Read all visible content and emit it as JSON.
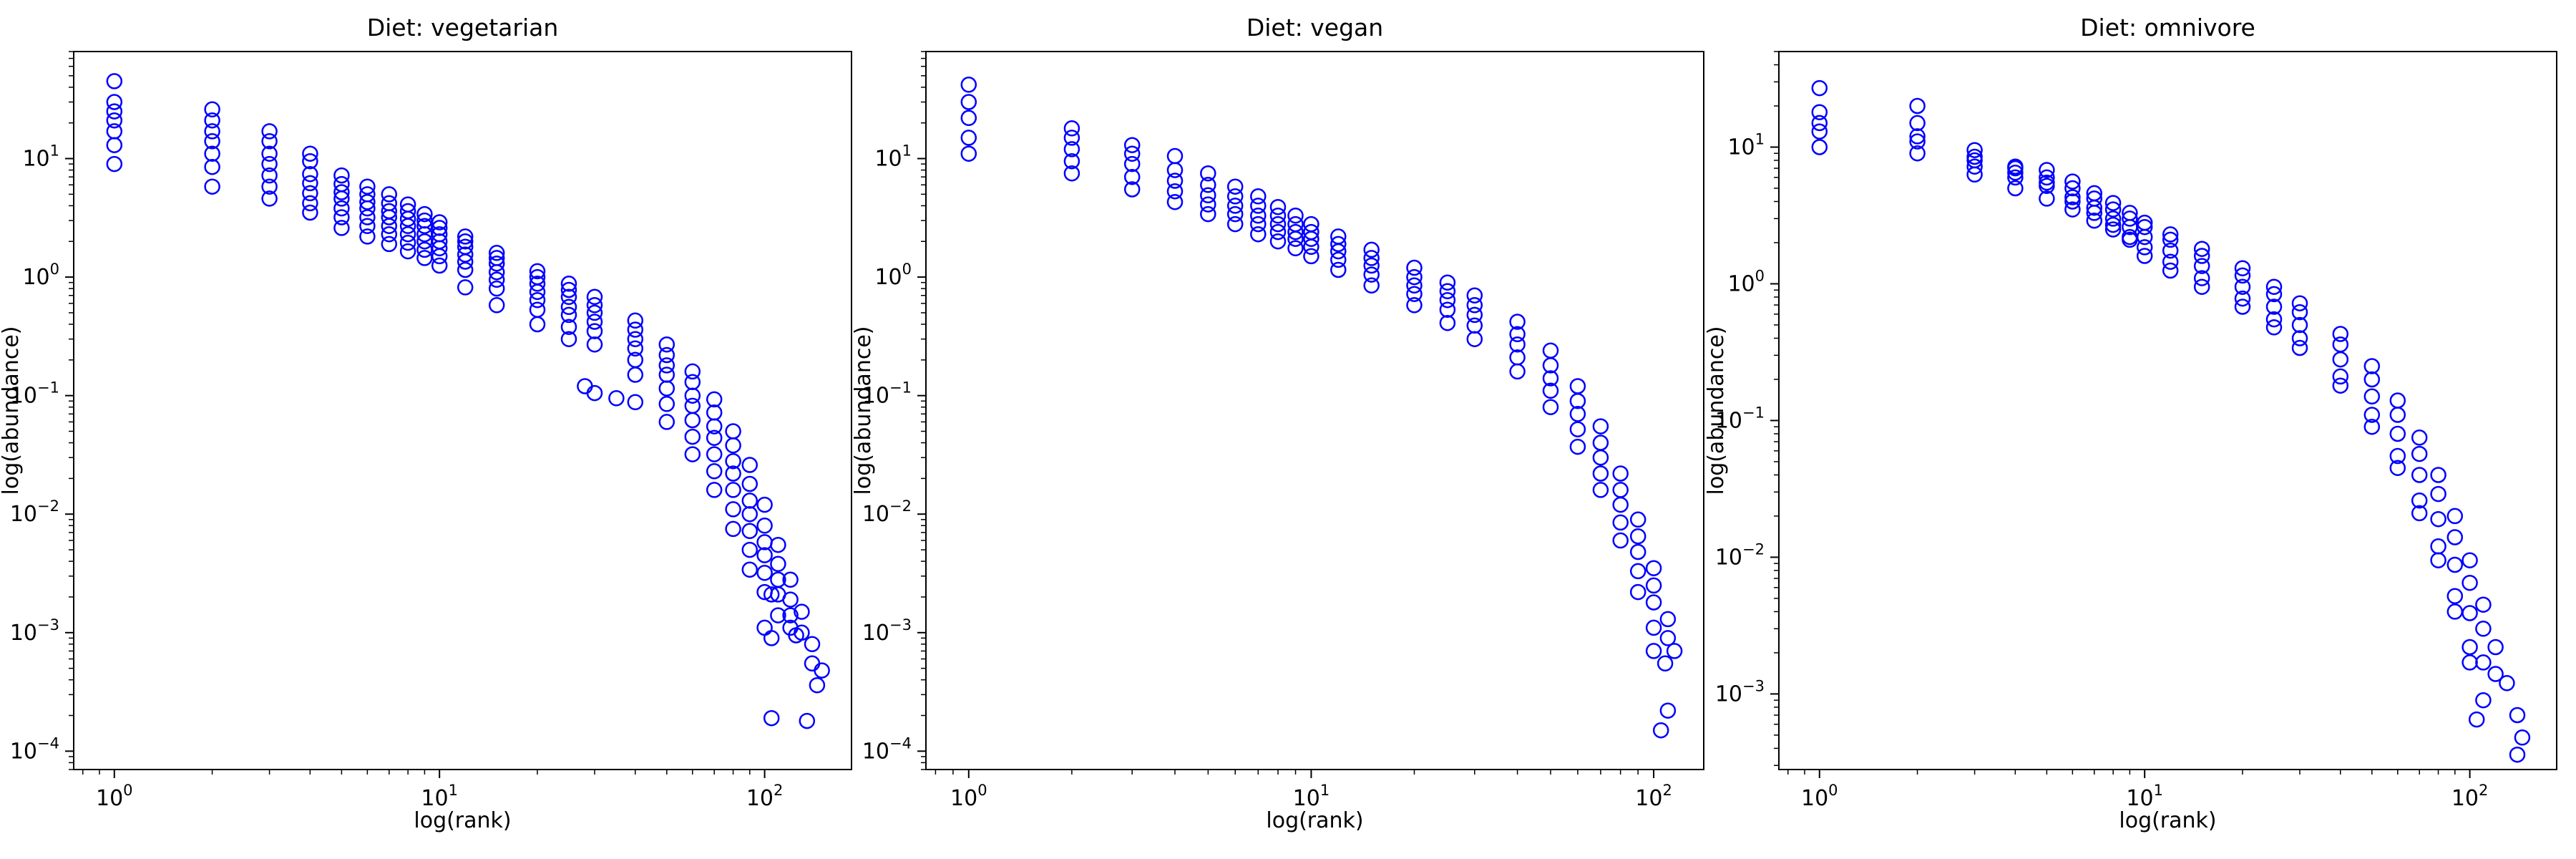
{
  "chart_data": [
    {
      "type": "scatter",
      "title": "Diet: vegetarian",
      "xlabel": "log(rank)",
      "ylabel": "log(abundance)",
      "xscale": "log",
      "yscale": "log",
      "xlim": [
        0.75,
        185
      ],
      "ylim": [
        7e-05,
        80
      ],
      "x_ticks": [
        "10^0",
        "10^1",
        "10^2"
      ],
      "y_ticks": [
        "10^-4",
        "10^-3",
        "10^-2",
        "10^-1",
        "10^0",
        "10^1"
      ],
      "marker": "open circle",
      "marker_color": "#0000ff",
      "grid": false,
      "series": [
        {
          "x": [
            1,
            2,
            3,
            4,
            5,
            6,
            7,
            8,
            9,
            10,
            12,
            15,
            20,
            25,
            30,
            40,
            50,
            60,
            70,
            80,
            90,
            100,
            110,
            120,
            130,
            140,
            150
          ],
          "y": [
            45,
            26,
            17,
            11,
            7.2,
            5.8,
            5.0,
            4.1,
            3.4,
            2.9,
            2.2,
            1.6,
            1.12,
            0.88,
            0.68,
            0.43,
            0.27,
            0.16,
            0.093,
            0.05,
            0.026,
            0.012,
            0.0055,
            0.0028,
            0.0015,
            0.0008,
            0.00048
          ]
        },
        {
          "x": [
            1,
            2,
            3,
            4,
            5,
            6,
            7,
            8,
            9,
            10,
            12,
            15,
            20,
            25,
            30,
            40,
            50,
            60,
            70,
            80,
            90,
            100,
            110,
            120,
            130,
            140,
            145
          ],
          "y": [
            30,
            21,
            14,
            9.5,
            6.1,
            5.0,
            4.2,
            3.6,
            3.0,
            2.6,
            2.0,
            1.45,
            1.0,
            0.78,
            0.58,
            0.36,
            0.22,
            0.13,
            0.072,
            0.038,
            0.018,
            0.008,
            0.0038,
            0.0019,
            0.001,
            0.00055,
            0.00036
          ]
        },
        {
          "x": [
            1,
            2,
            3,
            4,
            5,
            6,
            7,
            8,
            9,
            10,
            12,
            15,
            20,
            25,
            30,
            40,
            50,
            60,
            70,
            80,
            90,
            100,
            110,
            120,
            125
          ],
          "y": [
            25,
            17,
            11,
            7.4,
            5.2,
            4.3,
            3.6,
            3.1,
            2.7,
            2.3,
            1.8,
            1.3,
            0.88,
            0.68,
            0.5,
            0.3,
            0.18,
            0.1,
            0.055,
            0.028,
            0.013,
            0.0058,
            0.0028,
            0.0014,
            0.00095
          ]
        },
        {
          "x": [
            1,
            2,
            3,
            4,
            5,
            6,
            7,
            8,
            9,
            10,
            12,
            15,
            20,
            25,
            30,
            40,
            50,
            60,
            70,
            80,
            90,
            100,
            110,
            120,
            135
          ],
          "y": [
            21,
            14,
            9,
            6.2,
            4.6,
            3.8,
            3.2,
            2.7,
            2.3,
            2.0,
            1.55,
            1.1,
            0.75,
            0.56,
            0.42,
            0.25,
            0.15,
            0.082,
            0.044,
            0.022,
            0.01,
            0.0045,
            0.0021,
            0.0011,
            0.00018
          ]
        },
        {
          "x": [
            1,
            2,
            3,
            4,
            5,
            6,
            7,
            8,
            9,
            10,
            12,
            15,
            20,
            25,
            30,
            40,
            50,
            60,
            70,
            80,
            90,
            100,
            105,
            110
          ],
          "y": [
            17,
            11,
            7.2,
            5.1,
            3.8,
            3.2,
            2.7,
            2.3,
            2.0,
            1.75,
            1.35,
            0.95,
            0.64,
            0.48,
            0.35,
            0.2,
            0.115,
            0.062,
            0.032,
            0.016,
            0.0072,
            0.0032,
            0.0021,
            0.0014
          ]
        },
        {
          "x": [
            1,
            2,
            3,
            4,
            5,
            6,
            7,
            8,
            9,
            10,
            12,
            15,
            20,
            25,
            30,
            40,
            50,
            60,
            70,
            80,
            90,
            100,
            105
          ],
          "y": [
            13,
            8.5,
            5.8,
            4.2,
            3.2,
            2.7,
            2.3,
            1.95,
            1.7,
            1.5,
            1.15,
            0.8,
            0.53,
            0.38,
            0.27,
            0.15,
            0.085,
            0.045,
            0.023,
            0.011,
            0.005,
            0.0022,
            0.0009
          ]
        },
        {
          "x": [
            1,
            2,
            3,
            4,
            5,
            6,
            7,
            8,
            9,
            10,
            12,
            15,
            20,
            25,
            28,
            30,
            35,
            40,
            50,
            60,
            70,
            80,
            90,
            100,
            105
          ],
          "y": [
            9,
            5.8,
            4.6,
            3.5,
            2.6,
            2.2,
            1.9,
            1.65,
            1.45,
            1.25,
            0.82,
            0.58,
            0.4,
            0.3,
            0.12,
            0.105,
            0.095,
            0.088,
            0.06,
            0.032,
            0.016,
            0.0075,
            0.0034,
            0.0011,
            0.00019
          ]
        }
      ]
    },
    {
      "type": "scatter",
      "title": "Diet: vegan",
      "xlabel": "log(rank)",
      "ylabel": "log(abundance)",
      "xscale": "log",
      "yscale": "log",
      "xlim": [
        0.75,
        140
      ],
      "ylim": [
        7e-05,
        80
      ],
      "x_ticks": [
        "10^0",
        "10^1",
        "10^2"
      ],
      "y_ticks": [
        "10^-4",
        "10^-3",
        "10^-2",
        "10^-1",
        "10^0",
        "10^1"
      ],
      "marker": "open circle",
      "marker_color": "#0000ff",
      "grid": false,
      "series": [
        {
          "x": [
            1,
            2,
            3,
            4,
            5,
            6,
            7,
            8,
            9,
            10,
            12,
            15,
            20,
            25,
            30,
            40,
            50,
            60,
            70,
            80,
            90,
            100,
            110,
            115
          ],
          "y": [
            42,
            18,
            13,
            10.5,
            7.5,
            5.8,
            4.8,
            3.9,
            3.3,
            2.8,
            2.2,
            1.7,
            1.2,
            0.9,
            0.7,
            0.42,
            0.24,
            0.12,
            0.055,
            0.022,
            0.009,
            0.0035,
            0.0013,
            0.0007
          ]
        },
        {
          "x": [
            1,
            2,
            3,
            4,
            5,
            6,
            7,
            8,
            9,
            10,
            12,
            15,
            20,
            25,
            30,
            40,
            50,
            60,
            70,
            80,
            90,
            100,
            110
          ],
          "y": [
            30,
            15,
            11,
            8,
            6,
            4.8,
            4.0,
            3.3,
            2.8,
            2.4,
            1.9,
            1.45,
            1.0,
            0.76,
            0.58,
            0.33,
            0.18,
            0.09,
            0.04,
            0.016,
            0.0065,
            0.0025,
            0.0009
          ]
        },
        {
          "x": [
            1,
            2,
            3,
            4,
            5,
            6,
            7,
            8,
            9,
            10,
            12,
            15,
            20,
            25,
            30,
            40,
            50,
            60,
            70,
            80,
            90,
            100,
            108
          ],
          "y": [
            22,
            12,
            9,
            6.5,
            4.9,
            4.0,
            3.3,
            2.8,
            2.4,
            2.1,
            1.65,
            1.25,
            0.85,
            0.64,
            0.48,
            0.27,
            0.14,
            0.07,
            0.03,
            0.012,
            0.0048,
            0.0018,
            0.00055
          ]
        },
        {
          "x": [
            1,
            2,
            3,
            4,
            5,
            6,
            7,
            8,
            9,
            10,
            12,
            15,
            20,
            25,
            30,
            40,
            50,
            60,
            70,
            80,
            90,
            100,
            105
          ],
          "y": [
            15,
            9.5,
            7,
            5.3,
            4.1,
            3.4,
            2.8,
            2.4,
            2.1,
            1.8,
            1.4,
            1.05,
            0.72,
            0.53,
            0.39,
            0.21,
            0.11,
            0.052,
            0.022,
            0.0085,
            0.0033,
            0.0011,
            0.00015
          ]
        },
        {
          "x": [
            1,
            2,
            3,
            4,
            5,
            6,
            7,
            8,
            9,
            10,
            12,
            15,
            20,
            25,
            30,
            40,
            50,
            60,
            70,
            80,
            90,
            100,
            110
          ],
          "y": [
            11,
            7.5,
            5.5,
            4.3,
            3.4,
            2.8,
            2.3,
            2.0,
            1.75,
            1.5,
            1.15,
            0.85,
            0.58,
            0.41,
            0.3,
            0.16,
            0.08,
            0.037,
            0.016,
            0.006,
            0.0022,
            0.0007,
            0.00022
          ]
        }
      ]
    },
    {
      "type": "scatter",
      "title": "Diet: omnivore",
      "xlabel": "log(rank)",
      "ylabel": "log(abundance)",
      "xscale": "log",
      "yscale": "log",
      "xlim": [
        0.75,
        185
      ],
      "ylim": [
        0.00028,
        50
      ],
      "x_ticks": [
        "10^0",
        "10^1",
        "10^2"
      ],
      "y_ticks": [
        "10^-3",
        "10^-2",
        "10^-1",
        "10^0",
        "10^1"
      ],
      "marker": "open circle",
      "marker_color": "#0000ff",
      "grid": false,
      "series": [
        {
          "x": [
            1,
            2,
            3,
            4,
            5,
            6,
            7,
            8,
            9,
            10,
            12,
            15,
            20,
            25,
            30,
            40,
            50,
            60,
            70,
            80,
            90,
            100,
            110,
            120,
            130,
            140,
            145
          ],
          "y": [
            27,
            20,
            9.5,
            7.2,
            6.8,
            5.6,
            4.6,
            3.9,
            3.3,
            2.8,
            2.3,
            1.8,
            1.3,
            0.95,
            0.72,
            0.43,
            0.25,
            0.14,
            0.075,
            0.04,
            0.02,
            0.0095,
            0.0045,
            0.0022,
            0.0012,
            0.0007,
            0.00048
          ]
        },
        {
          "x": [
            1,
            2,
            3,
            4,
            5,
            6,
            7,
            8,
            9,
            10,
            12,
            15,
            20,
            25,
            30,
            40,
            50,
            60,
            70,
            80,
            90,
            100,
            110,
            120,
            140
          ],
          "y": [
            18,
            15,
            8.5,
            7.0,
            6.0,
            5.0,
            4.2,
            3.5,
            3.0,
            2.6,
            2.1,
            1.6,
            1.15,
            0.84,
            0.62,
            0.36,
            0.2,
            0.11,
            0.057,
            0.029,
            0.014,
            0.0065,
            0.003,
            0.0014,
            0.00036
          ]
        },
        {
          "x": [
            1,
            2,
            3,
            4,
            5,
            6,
            7,
            8,
            9,
            10,
            12,
            15,
            20,
            25,
            30,
            40,
            50,
            60,
            70,
            80,
            90,
            100,
            110
          ],
          "y": [
            13,
            11,
            7.2,
            6.0,
            5.2,
            4.3,
            3.6,
            3.0,
            2.6,
            2.2,
            1.75,
            1.35,
            0.95,
            0.68,
            0.5,
            0.28,
            0.15,
            0.08,
            0.04,
            0.019,
            0.0088,
            0.0039,
            0.0017
          ]
        },
        {
          "x": [
            1,
            2,
            3,
            4,
            5,
            6,
            7,
            8,
            9,
            10,
            12,
            15,
            20,
            25,
            30,
            40,
            50,
            60,
            70,
            80,
            90,
            100,
            105
          ],
          "y": [
            10,
            9,
            6.3,
            5.0,
            4.2,
            3.5,
            2.9,
            2.5,
            2.1,
            1.85,
            1.45,
            1.1,
            0.78,
            0.55,
            0.4,
            0.21,
            0.11,
            0.055,
            0.026,
            0.012,
            0.0052,
            0.0022,
            0.00065
          ]
        },
        {
          "x": [
            1,
            2,
            3,
            4,
            5,
            6,
            7,
            8,
            9,
            10,
            12,
            15,
            20,
            25,
            30,
            40,
            50,
            60,
            70,
            80,
            90,
            100,
            110
          ],
          "y": [
            15,
            12,
            8,
            6.5,
            5.5,
            4.0,
            3.3,
            2.7,
            2.2,
            1.6,
            1.25,
            0.95,
            0.68,
            0.48,
            0.34,
            0.18,
            0.09,
            0.045,
            0.021,
            0.0095,
            0.004,
            0.0017,
            0.0009
          ]
        }
      ]
    }
  ]
}
